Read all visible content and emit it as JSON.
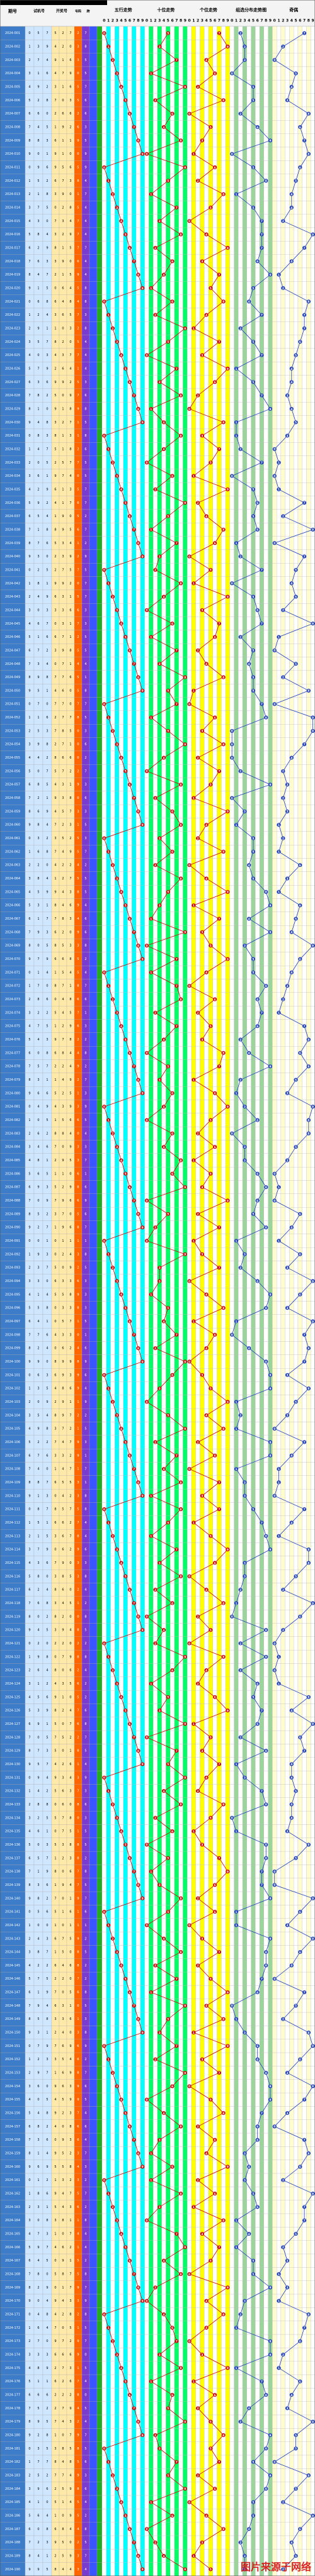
{
  "header": {
    "groups": [
      "期号",
      "试机号",
      "开奖号",
      "号码",
      "跨",
      "五行走势",
      "十位走势",
      "个位走势",
      "组选分布走势图",
      "奇偶",
      "大小"
    ],
    "digits": [
      "0",
      "1",
      "2",
      "3",
      "4",
      "5",
      "6",
      "7",
      "8",
      "9"
    ]
  },
  "watermark": "图片来源于网络",
  "colors": {
    "issue_bg": "#3d7cc9",
    "trial_bg": "#cfe6ff",
    "draw_bg": "#ffe9a8",
    "num_bg": "#ff6600",
    "span_bg": "#7a3ccf",
    "c1": "#ffffff",
    "c2": "#00ffff",
    "c3": "#ffffff",
    "c4": "#00ff66",
    "c5": "#ffffff",
    "c6": "#ffff00",
    "c7": "#ffffff",
    "dist_bg": "#9bd59b",
    "oe_bg": "#fffccf",
    "line_red": "#cc0000",
    "ball_blue": "#1f3fb8"
  },
  "chart_data": {
    "type": "table",
    "title": "",
    "first_issue": "2024-001",
    "values": [
      [
        0,
        5,
        7
      ],
      [
        1,
        3,
        9
      ],
      [
        2,
        7,
        4
      ],
      [
        3,
        1,
        6
      ],
      [
        4,
        9,
        2
      ],
      [
        5,
        2,
        8
      ],
      [
        6,
        6,
        0
      ],
      [
        7,
        4,
        5
      ],
      [
        8,
        8,
        3
      ],
      [
        9,
        0,
        1
      ],
      [
        0,
        9,
        6
      ],
      [
        1,
        5,
        2
      ],
      [
        2,
        1,
        8
      ],
      [
        3,
        7,
        5
      ],
      [
        4,
        3,
        0
      ],
      [
        5,
        8,
        4
      ],
      [
        6,
        2,
        9
      ],
      [
        7,
        6,
        3
      ],
      [
        8,
        4,
        7
      ],
      [
        9,
        1,
        5
      ],
      [
        0,
        6,
        8
      ],
      [
        1,
        2,
        4
      ],
      [
        2,
        9,
        1
      ],
      [
        3,
        5,
        7
      ],
      [
        4,
        0,
        3
      ],
      [
        5,
        7,
        9
      ],
      [
        6,
        3,
        6
      ],
      [
        7,
        8,
        2
      ],
      [
        8,
        1,
        0
      ],
      [
        9,
        4,
        8
      ],
      [
        0,
        8,
        3
      ],
      [
        1,
        4,
        7
      ],
      [
        2,
        0,
        5
      ],
      [
        3,
        6,
        1
      ],
      [
        4,
        2,
        9
      ],
      [
        5,
        9,
        2
      ],
      [
        6,
        5,
        4
      ],
      [
        7,
        1,
        8
      ],
      [
        8,
        7,
        6
      ],
      [
        9,
        3,
        0
      ],
      [
        0,
        2,
        5
      ],
      [
        1,
        8,
        1
      ],
      [
        2,
        4,
        9
      ],
      [
        3,
        0,
        3
      ],
      [
        4,
        6,
        7
      ],
      [
        5,
        1,
        6
      ],
      [
        6,
        7,
        2
      ],
      [
        7,
        3,
        4
      ],
      [
        8,
        9,
        8
      ],
      [
        9,
        5,
        1
      ],
      [
        0,
        7,
        0
      ],
      [
        1,
        1,
        6
      ],
      [
        2,
        5,
        3
      ],
      [
        3,
        9,
        8
      ],
      [
        4,
        4,
        2
      ],
      [
        5,
        0,
        7
      ],
      [
        6,
        8,
        5
      ],
      [
        7,
        2,
        1
      ],
      [
        8,
        6,
        9
      ],
      [
        9,
        8,
        4
      ],
      [
        0,
        3,
        2
      ],
      [
        1,
        6,
        8
      ],
      [
        2,
        2,
        0
      ],
      [
        3,
        8,
        4
      ],
      [
        4,
        5,
        9
      ],
      [
        5,
        3,
        1
      ],
      [
        6,
        1,
        7
      ],
      [
        7,
        9,
        3
      ],
      [
        8,
        0,
        5
      ],
      [
        9,
        7,
        9
      ],
      [
        0,
        1,
        4
      ],
      [
        1,
        7,
        0
      ],
      [
        2,
        8,
        6
      ],
      [
        3,
        2,
        2
      ],
      [
        4,
        7,
        5
      ],
      [
        5,
        4,
        3
      ],
      [
        6,
        0,
        8
      ],
      [
        7,
        5,
        7
      ],
      [
        8,
        3,
        1
      ],
      [
        9,
        6,
        6
      ],
      [
        0,
        4,
        9
      ],
      [
        1,
        0,
        5
      ],
      [
        2,
        6,
        2
      ],
      [
        3,
        4,
        6
      ],
      [
        4,
        8,
        1
      ],
      [
        5,
        6,
        5
      ],
      [
        6,
        9,
        3
      ],
      [
        7,
        0,
        9
      ],
      [
        8,
        5,
        2
      ],
      [
        9,
        2,
        7
      ],
      [
        0,
        0,
        1
      ],
      [
        1,
        9,
        3
      ],
      [
        2,
        3,
        7
      ],
      [
        3,
        3,
        0
      ],
      [
        4,
        1,
        4
      ],
      [
        5,
        5,
        8
      ],
      [
        6,
        4,
        1
      ],
      [
        7,
        7,
        6
      ],
      [
        8,
        2,
        4
      ],
      [
        9,
        9,
        0
      ],
      [
        0,
        6,
        3
      ],
      [
        1,
        3,
        5
      ],
      [
        2,
        0,
        9
      ],
      [
        3,
        5,
        4
      ],
      [
        4,
        9,
        8
      ],
      [
        5,
        2,
        2
      ],
      [
        6,
        7,
        6
      ],
      [
        7,
        4,
        0
      ],
      [
        8,
        8,
        7
      ],
      [
        9,
        1,
        3
      ],
      [
        0,
        8,
        7
      ],
      [
        1,
        5,
        1
      ],
      [
        2,
        1,
        5
      ],
      [
        3,
        7,
        9
      ],
      [
        4,
        3,
        6
      ],
      [
        5,
        8,
        0
      ],
      [
        6,
        2,
        4
      ],
      [
        7,
        6,
        8
      ],
      [
        8,
        0,
        2
      ],
      [
        9,
        4,
        5
      ],
      [
        0,
        2,
        0
      ],
      [
        1,
        9,
        8
      ],
      [
        2,
        6,
        4
      ],
      [
        3,
        1,
        2
      ],
      [
        4,
        5,
        6
      ],
      [
        5,
        3,
        9
      ],
      [
        6,
        9,
        1
      ],
      [
        7,
        0,
        5
      ],
      [
        8,
        7,
        3
      ],
      [
        9,
        5,
        7
      ],
      [
        0,
        9,
        4
      ],
      [
        1,
        4,
        2
      ],
      [
        2,
        8,
        8
      ],
      [
        3,
        2,
        5
      ],
      [
        4,
        6,
        1
      ],
      [
        5,
        0,
        3
      ],
      [
        6,
        5,
        7
      ],
      [
        7,
        1,
        9
      ],
      [
        8,
        3,
        6
      ],
      [
        9,
        8,
        2
      ],
      [
        0,
        5,
        6
      ],
      [
        1,
        0,
        0
      ],
      [
        2,
        4,
        3
      ],
      [
        3,
        8,
        7
      ],
      [
        4,
        2,
        2
      ],
      [
        5,
        7,
        5
      ],
      [
        6,
        1,
        9
      ],
      [
        7,
        9,
        4
      ],
      [
        8,
        5,
        8
      ],
      [
        9,
        3,
        1
      ],
      [
        0,
        7,
        9
      ],
      [
        1,
        2,
        3
      ],
      [
        2,
        9,
        7
      ],
      [
        3,
        6,
        0
      ],
      [
        4,
        0,
        5
      ],
      [
        5,
        4,
        8
      ],
      [
        6,
        8,
        2
      ],
      [
        7,
        3,
        6
      ],
      [
        8,
        1,
        4
      ],
      [
        9,
        6,
        9
      ],
      [
        0,
        1,
        2
      ],
      [
        1,
        8,
        6
      ],
      [
        2,
        3,
        1
      ],
      [
        3,
        0,
        8
      ],
      [
        4,
        7,
        3
      ],
      [
        5,
        9,
        7
      ],
      [
        6,
        4,
        5
      ],
      [
        7,
        8,
        0
      ],
      [
        8,
        2,
        9
      ],
      [
        9,
        0,
        4
      ],
      [
        0,
        4,
        8
      ],
      [
        1,
        6,
        4
      ],
      [
        2,
        7,
        0
      ],
      [
        3,
        3,
        3
      ],
      [
        4,
        8,
        9
      ],
      [
        5,
        1,
        1
      ],
      [
        6,
        6,
        6
      ],
      [
        7,
        5,
        2
      ],
      [
        8,
        9,
        5
      ],
      [
        9,
        2,
        8
      ],
      [
        0,
        3,
        5
      ],
      [
        1,
        7,
        7
      ],
      [
        2,
        5,
        2
      ],
      [
        3,
        9,
        6
      ],
      [
        4,
        1,
        0
      ],
      [
        5,
        6,
        4
      ],
      [
        6,
        0,
        8
      ],
      [
        7,
        2,
        3
      ],
      [
        8,
        4,
        1
      ],
      [
        9,
        9,
        5
      ]
    ],
    "xlabel": "",
    "ylabel": ""
  }
}
